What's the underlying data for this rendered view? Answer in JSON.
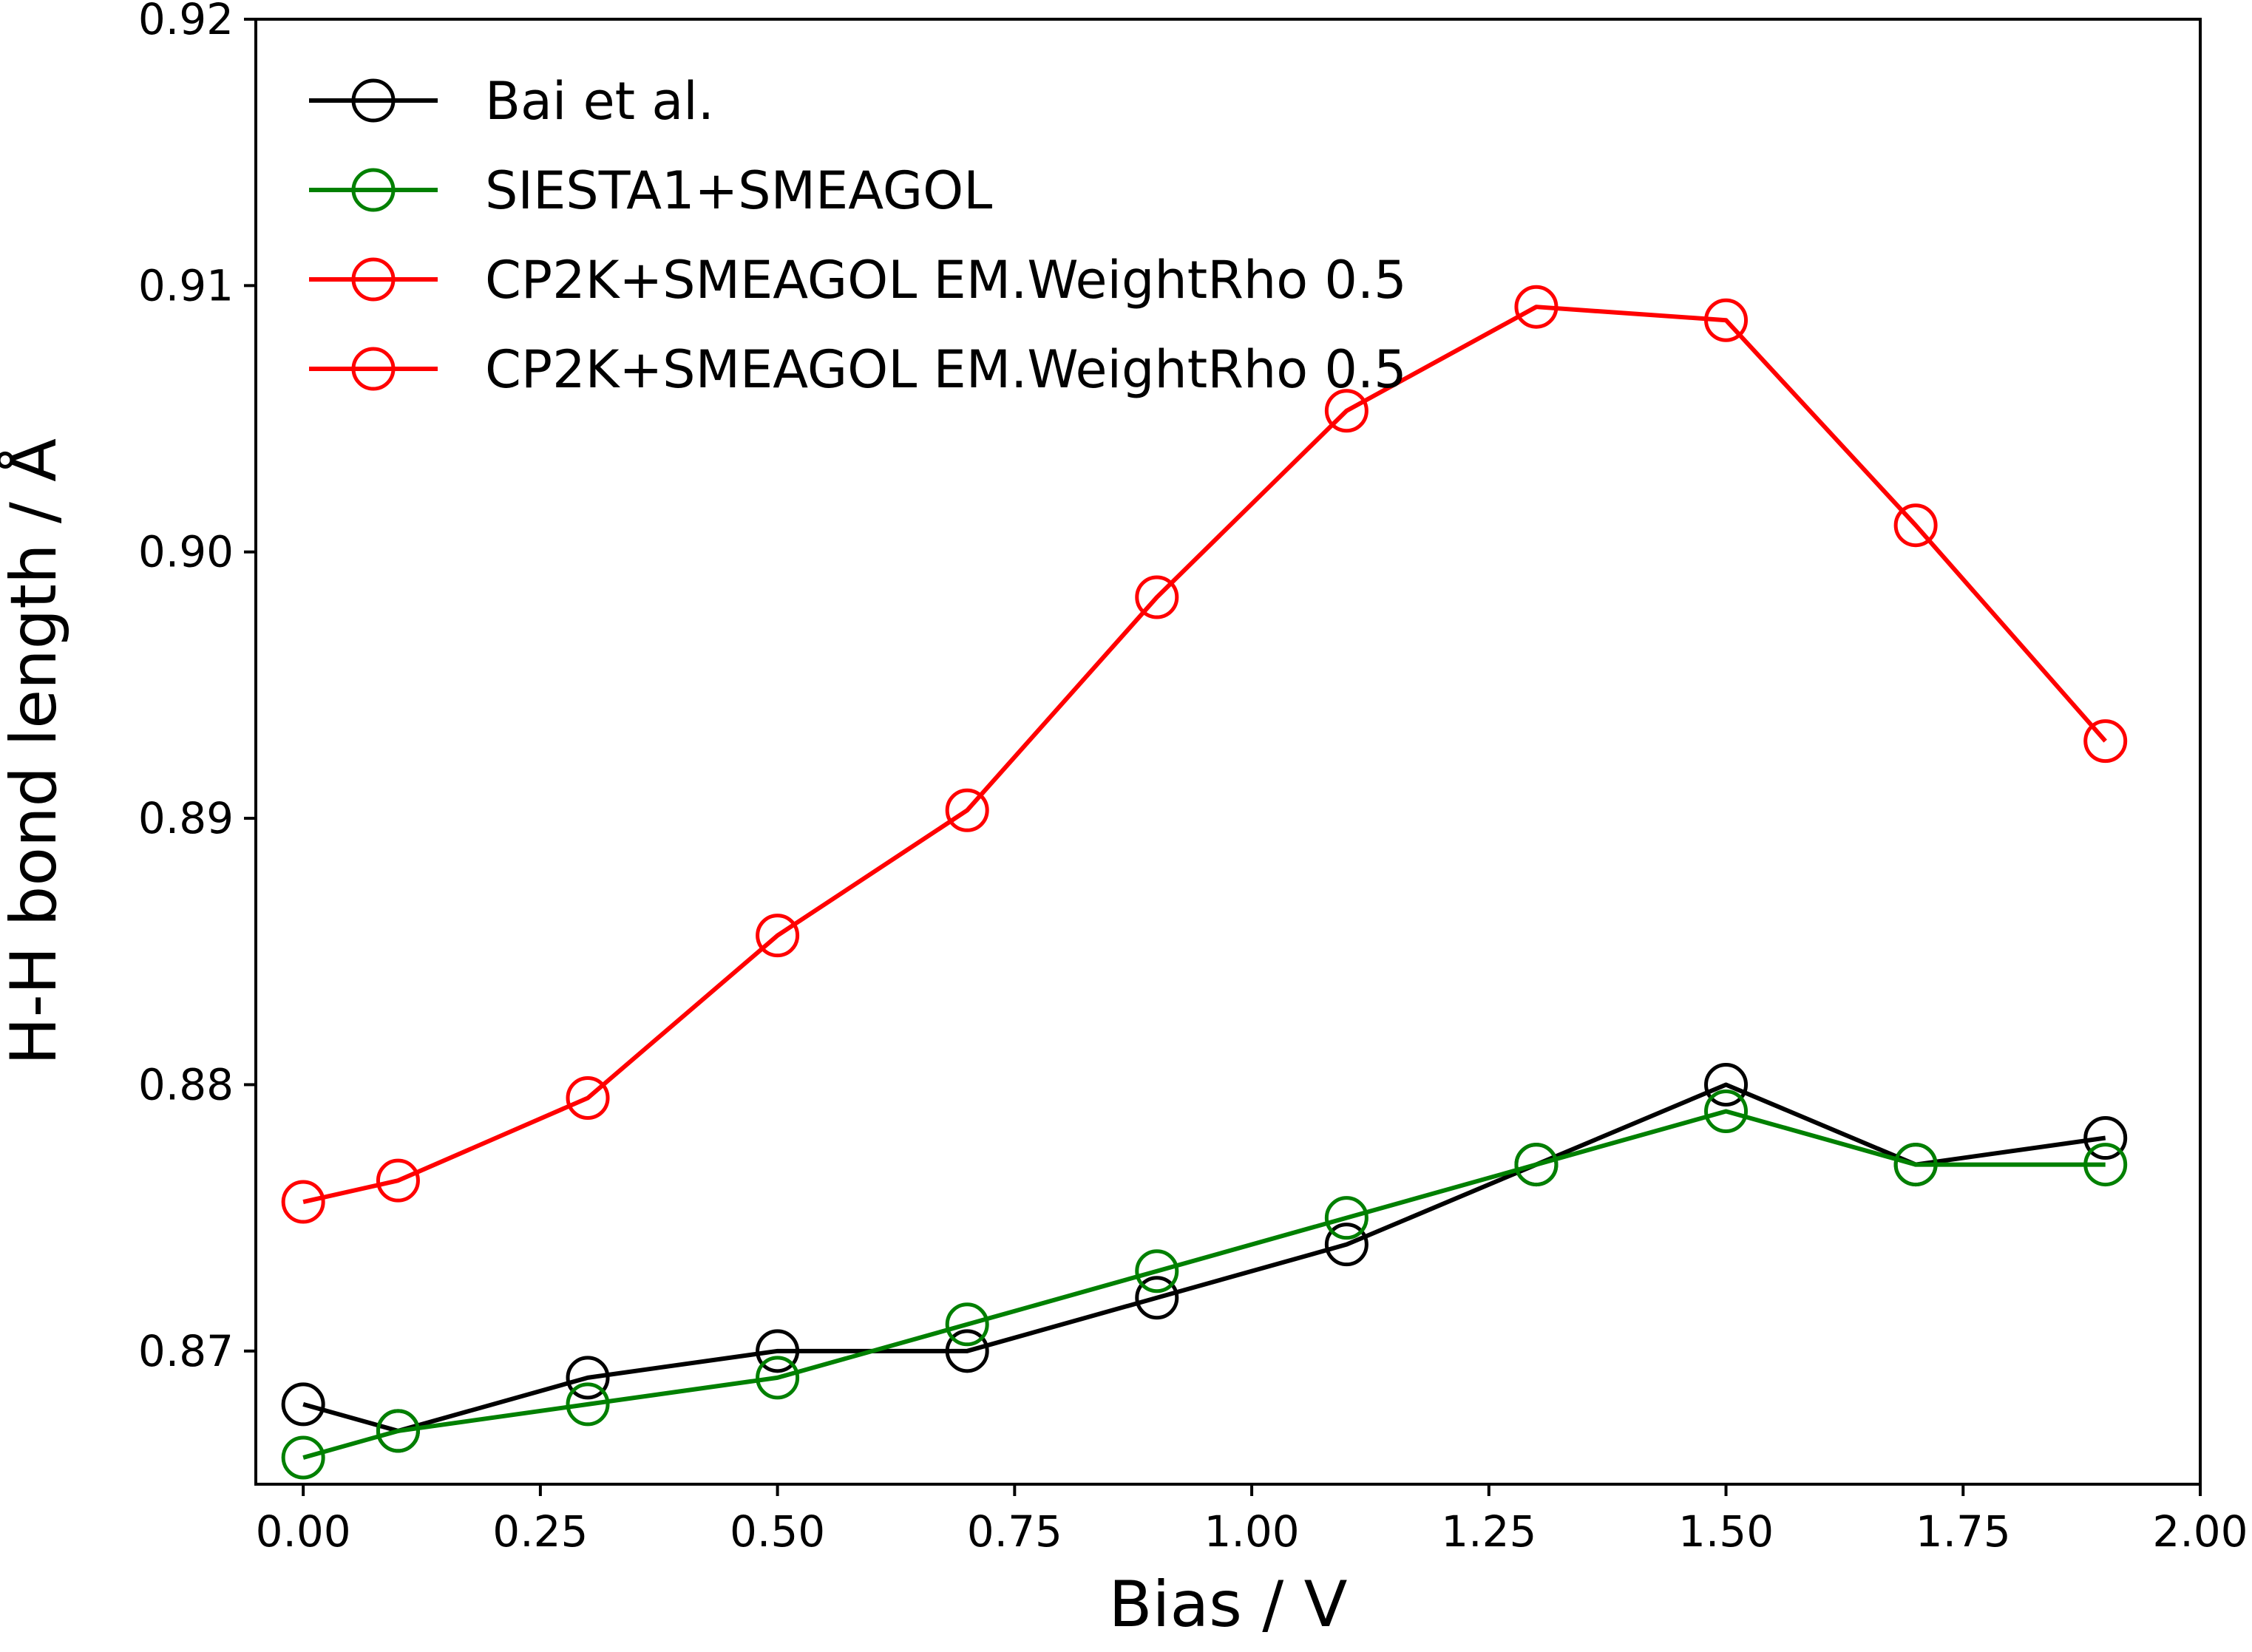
{
  "chart_data": {
    "type": "line",
    "xlabel": "Bias / V",
    "ylabel": "H-H bond length / Å",
    "xlim": [
      -0.05,
      2.0
    ],
    "ylim": [
      0.865,
      0.92
    ],
    "xticks": [
      0.0,
      0.25,
      0.5,
      0.75,
      1.0,
      1.25,
      1.5,
      1.75,
      2.0
    ],
    "xtick_labels": [
      "0.00",
      "0.25",
      "0.50",
      "0.75",
      "1.00",
      "1.25",
      "1.50",
      "1.75",
      "2.00"
    ],
    "yticks": [
      0.87,
      0.88,
      0.89,
      0.9,
      0.91,
      0.92
    ],
    "ytick_labels": [
      "0.87",
      "0.88",
      "0.89",
      "0.90",
      "0.91",
      "0.92"
    ],
    "grid": false,
    "legend_position": "top-left",
    "marker": "open-circle",
    "series": [
      {
        "name": "Bai et al.",
        "color": "#000000",
        "x": [
          0.0,
          0.1,
          0.3,
          0.5,
          0.7,
          0.9,
          1.1,
          1.3,
          1.5,
          1.7,
          1.9
        ],
        "y": [
          0.868,
          0.867,
          0.869,
          0.87,
          0.87,
          0.872,
          0.874,
          0.877,
          0.88,
          0.877,
          0.878
        ]
      },
      {
        "name": "SIESTA1+SMEAGOL",
        "color": "#008000",
        "x": [
          0.0,
          0.1,
          0.3,
          0.5,
          0.7,
          0.9,
          1.1,
          1.3,
          1.5,
          1.7,
          1.9
        ],
        "y": [
          0.866,
          0.867,
          0.868,
          0.869,
          0.871,
          0.873,
          0.875,
          0.877,
          0.879,
          0.877,
          0.877
        ]
      },
      {
        "name": "CP2K+SMEAGOL EM.WeightRho 0.5",
        "color": "#ff0000",
        "x": [
          0.0,
          0.1,
          0.3,
          0.5,
          0.7,
          0.9,
          1.1,
          1.3,
          1.5,
          1.7,
          1.9
        ],
        "y": [
          0.8756,
          0.8764,
          0.8795,
          0.8856,
          0.8903,
          0.8983,
          0.9053,
          0.9092,
          0.9087,
          0.901,
          0.8929
        ]
      },
      {
        "name": "CP2K+SMEAGOL EM.WeightRho 0.5",
        "color": "#ff0000",
        "x": [],
        "y": []
      }
    ]
  }
}
